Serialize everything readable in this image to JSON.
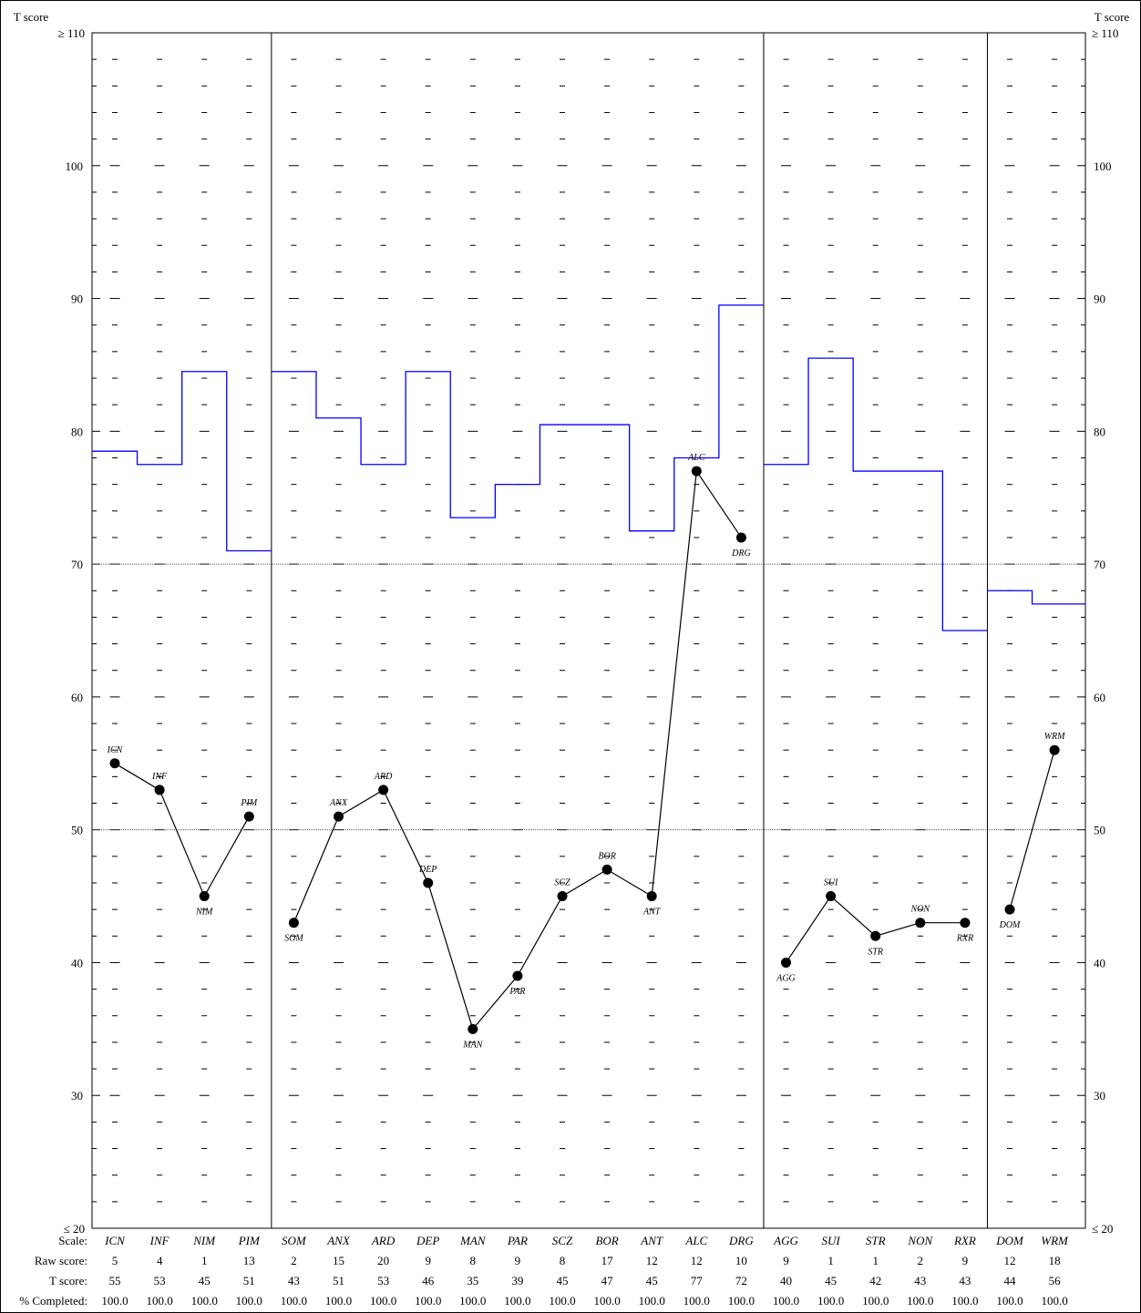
{
  "chart_data": {
    "type": "line",
    "y_axis_title_left": "T score",
    "y_axis_title_right": "T score",
    "ylim": [
      20,
      110
    ],
    "y_top_label": "≥ 110",
    "y_bottom_label": "≤ 20",
    "y_ticks": [
      30,
      40,
      50,
      60,
      70,
      80,
      90,
      100
    ],
    "reference_lines": [
      50,
      70
    ],
    "groups": [
      [
        "ICN",
        "INF",
        "NIM",
        "PIM"
      ],
      [
        "SOM",
        "ANX",
        "ARD",
        "DEP",
        "MAN",
        "PAR",
        "SCZ",
        "BOR",
        "ANT",
        "ALC",
        "DRG"
      ],
      [
        "AGG",
        "SUI",
        "STR",
        "NON",
        "RXR"
      ],
      [
        "DOM",
        "WRM"
      ]
    ],
    "scales": [
      "ICN",
      "INF",
      "NIM",
      "PIM",
      "SOM",
      "ANX",
      "ARD",
      "DEP",
      "MAN",
      "PAR",
      "SCZ",
      "BOR",
      "ANT",
      "ALC",
      "DRG",
      "AGG",
      "SUI",
      "STR",
      "NON",
      "RXR",
      "DOM",
      "WRM"
    ],
    "t_scores": [
      55,
      53,
      45,
      51,
      43,
      51,
      53,
      46,
      35,
      39,
      45,
      47,
      45,
      77,
      72,
      40,
      45,
      42,
      43,
      43,
      44,
      56
    ],
    "label_position": [
      "above",
      "above",
      "below",
      "above",
      "below",
      "above",
      "above",
      "above",
      "below",
      "below",
      "above",
      "above",
      "below",
      "above",
      "below",
      "below",
      "above",
      "below",
      "above",
      "below",
      "below",
      "above"
    ],
    "threshold_line": {
      "color": "#0000ff",
      "values": [
        78.5,
        77.5,
        84.5,
        71,
        84.5,
        81,
        77.5,
        84.5,
        73.5,
        76,
        80.5,
        80.5,
        72.5,
        78,
        89.5,
        77.5,
        85.5,
        77,
        77,
        65,
        68,
        67
      ]
    },
    "table": {
      "row_labels": [
        "Scale:",
        "Raw score:",
        "T score:",
        "% Completed:"
      ],
      "raw_scores": [
        "5",
        "4",
        "1",
        "13",
        "2",
        "15",
        "20",
        "9",
        "8",
        "9",
        "8",
        "17",
        "12",
        "12",
        "10",
        "9",
        "1",
        "1",
        "2",
        "9",
        "12",
        "18"
      ],
      "t_scores": [
        "55",
        "53",
        "45",
        "51",
        "43",
        "51",
        "53",
        "46",
        "35",
        "39",
        "45",
        "47",
        "45",
        "77",
        "72",
        "40",
        "45",
        "42",
        "43",
        "43",
        "44",
        "56"
      ],
      "pct_completed": [
        "100.0",
        "100.0",
        "100.0",
        "100.0",
        "100.0",
        "100.0",
        "100.0",
        "100.0",
        "100.0",
        "100.0",
        "100.0",
        "100.0",
        "100.0",
        "100.0",
        "100.0",
        "100.0",
        "100.0",
        "100.0",
        "100.0",
        "100.0",
        "100.0",
        "100.0"
      ]
    }
  }
}
